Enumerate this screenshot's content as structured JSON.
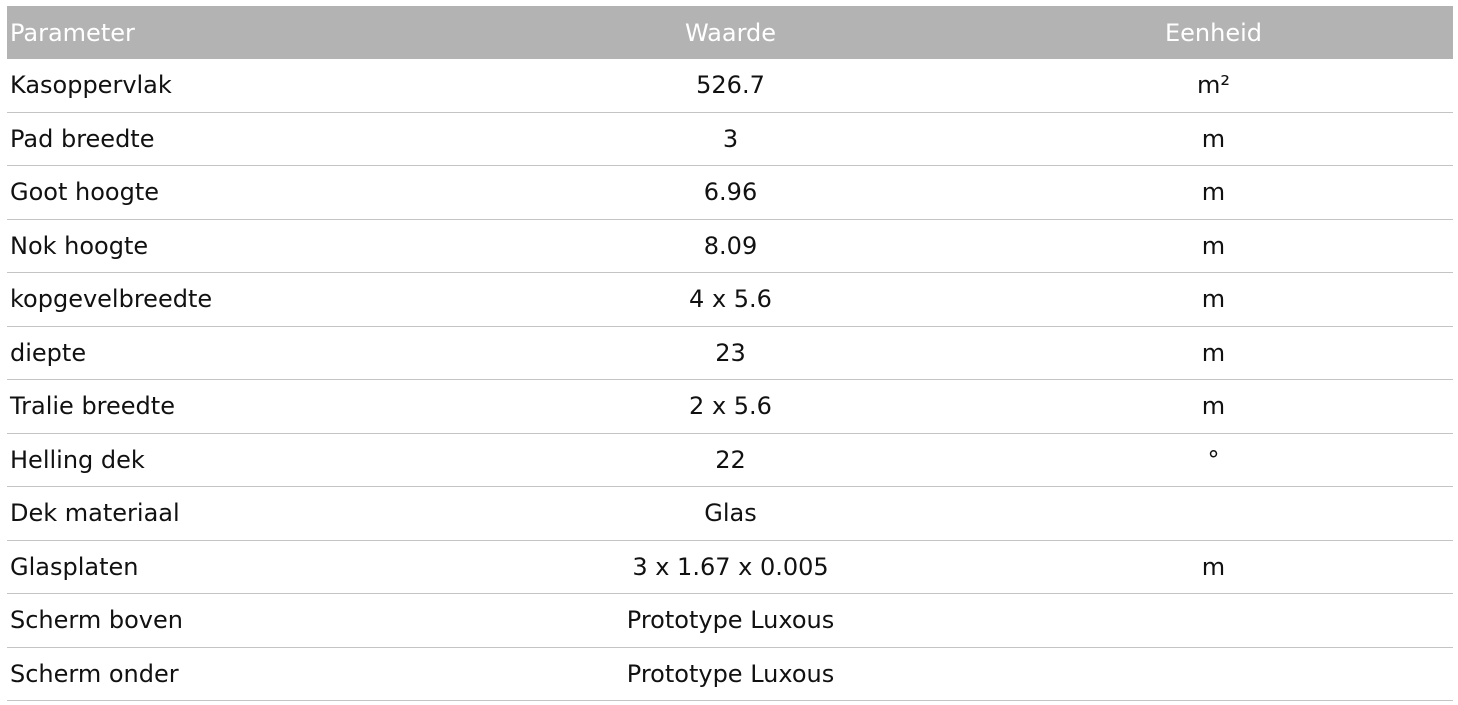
{
  "table": {
    "headers": [
      "Parameter",
      "Waarde",
      "Eenheid"
    ],
    "rows": [
      [
        "Kasoppervlak",
        "526.7",
        "m²"
      ],
      [
        "Pad breedte",
        "3",
        "m"
      ],
      [
        "Goot hoogte",
        "6.96",
        "m"
      ],
      [
        "Nok hoogte",
        "8.09",
        "m"
      ],
      [
        "kopgevelbreedte",
        "4 x 5.6",
        "m"
      ],
      [
        "diepte",
        "23",
        "m"
      ],
      [
        "Tralie breedte",
        "2 x 5.6",
        "m"
      ],
      [
        "Helling dek",
        "22",
        "°"
      ],
      [
        "Dek materiaal",
        "Glas",
        ""
      ],
      [
        "Glasplaten",
        "3 x 1.67 x 0.005",
        "m"
      ],
      [
        "Scherm boven",
        "Prototype Luxous",
        ""
      ],
      [
        "Scherm onder",
        "Prototype Luxous",
        ""
      ]
    ]
  },
  "colors": {
    "header_bg": "#b3b3b3",
    "header_text": "#ffffff",
    "row_divider": "#c4c4c4"
  }
}
